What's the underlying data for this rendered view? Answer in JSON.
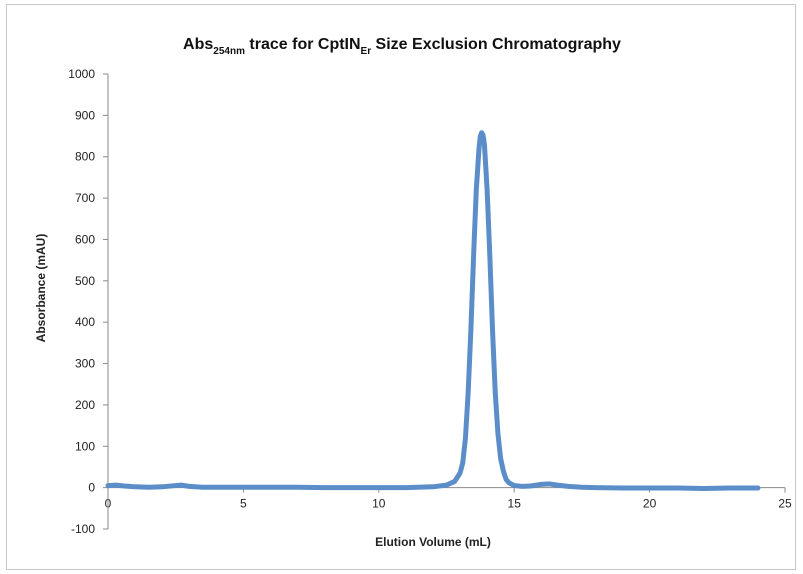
{
  "chart_data": {
    "type": "line",
    "title": {
      "main": "Abs",
      "main_subscript": "254nm",
      "middle": " trace for CptIN",
      "middle_subscript": "Er",
      "end": " Size Exclusion Chromatography"
    },
    "xlabel": "Elution Volume (mL)",
    "ylabel": "Absorbance (mAU)",
    "xlim": [
      0,
      25
    ],
    "ylim": [
      -100,
      1000
    ],
    "x_ticks": [
      0,
      5,
      10,
      15,
      20,
      25
    ],
    "y_ticks": [
      -100,
      0,
      100,
      200,
      300,
      400,
      500,
      600,
      700,
      800,
      900,
      1000
    ],
    "grid": false,
    "legend": "none",
    "line_color": "#5b8ec9",
    "series": [
      {
        "x": [
          0,
          0.3,
          0.6,
          1.0,
          1.5,
          2.0,
          2.5,
          2.7,
          3.0,
          3.5,
          4.0,
          5.0,
          6.0,
          7.0,
          8.0,
          9.0,
          10.0,
          11.0,
          12.0,
          12.5,
          12.8,
          13.0,
          13.1,
          13.2,
          13.3,
          13.4,
          13.5,
          13.6,
          13.7,
          13.75,
          13.8,
          13.85,
          13.9,
          14.0,
          14.1,
          14.2,
          14.3,
          14.4,
          14.5,
          14.6,
          14.7,
          14.8,
          15.0,
          15.3,
          15.6,
          16.0,
          16.3,
          16.6,
          17.0,
          17.5,
          18.0,
          19.0,
          20.0,
          21.0,
          22.0,
          23.0,
          24.0
        ],
        "y": [
          5,
          6,
          4,
          2,
          1,
          2,
          5,
          6,
          3,
          1,
          1,
          1,
          1,
          1,
          0,
          0,
          0,
          0,
          2,
          6,
          15,
          35,
          60,
          120,
          230,
          380,
          560,
          720,
          820,
          850,
          858,
          852,
          830,
          720,
          560,
          380,
          230,
          130,
          70,
          40,
          20,
          12,
          5,
          3,
          4,
          8,
          9,
          6,
          3,
          1,
          0,
          -1,
          -1,
          -1,
          -2,
          -1,
          -1
        ]
      }
    ]
  }
}
